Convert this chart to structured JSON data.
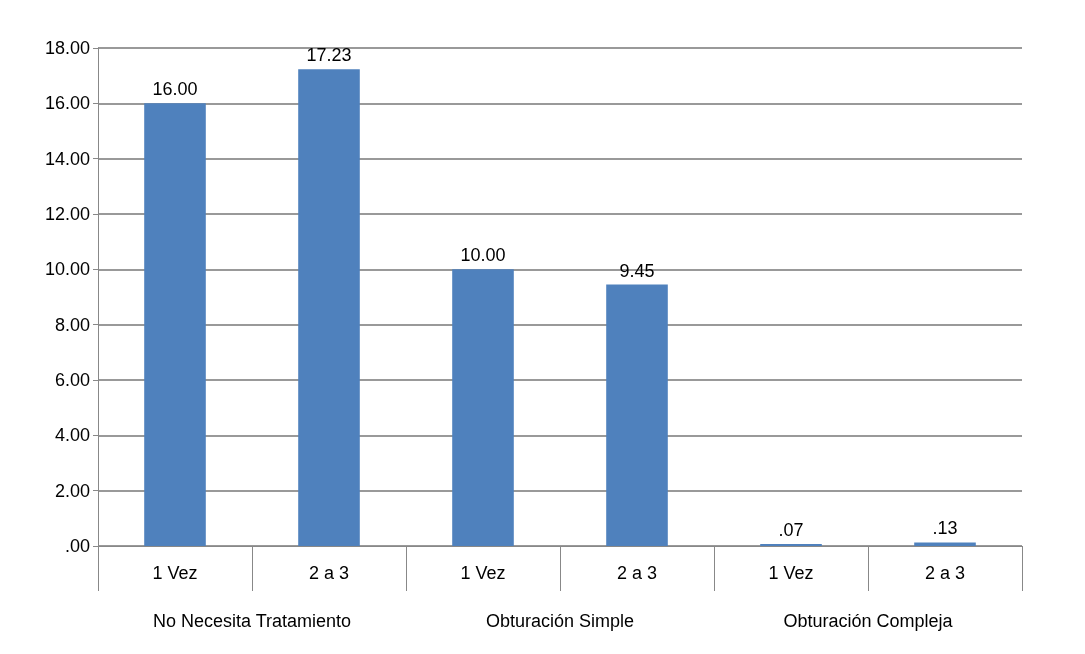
{
  "chart_data": {
    "type": "bar",
    "categories": [
      "1 Vez",
      "2 a 3",
      "1 Vez",
      "2 a 3",
      "1 Vez",
      "2 a 3"
    ],
    "values": [
      16,
      17.23,
      10,
      9.45,
      0.07,
      0.13
    ],
    "value_labels": [
      "16.00",
      "17.23",
      "10.00",
      "9.45",
      ".07",
      ".13"
    ],
    "color": "#4f81bd",
    "ylim": [
      0,
      18
    ],
    "yticks": [
      {
        "value": 0,
        "label": ".00"
      },
      {
        "value": 2,
        "label": "2.00"
      },
      {
        "value": 4,
        "label": "4.00"
      },
      {
        "value": 6,
        "label": "6.00"
      },
      {
        "value": 8,
        "label": "8.00"
      },
      {
        "value": 10,
        "label": "10.00"
      },
      {
        "value": 12,
        "label": "12.00"
      },
      {
        "value": 14,
        "label": "14.00"
      },
      {
        "value": 16,
        "label": "16.00"
      },
      {
        "value": 18,
        "label": "18.00"
      }
    ],
    "annotations": [
      "No Necesita Tratamiento",
      "Obturación Simple",
      "Obturación Compleja"
    ],
    "grid": true
  }
}
